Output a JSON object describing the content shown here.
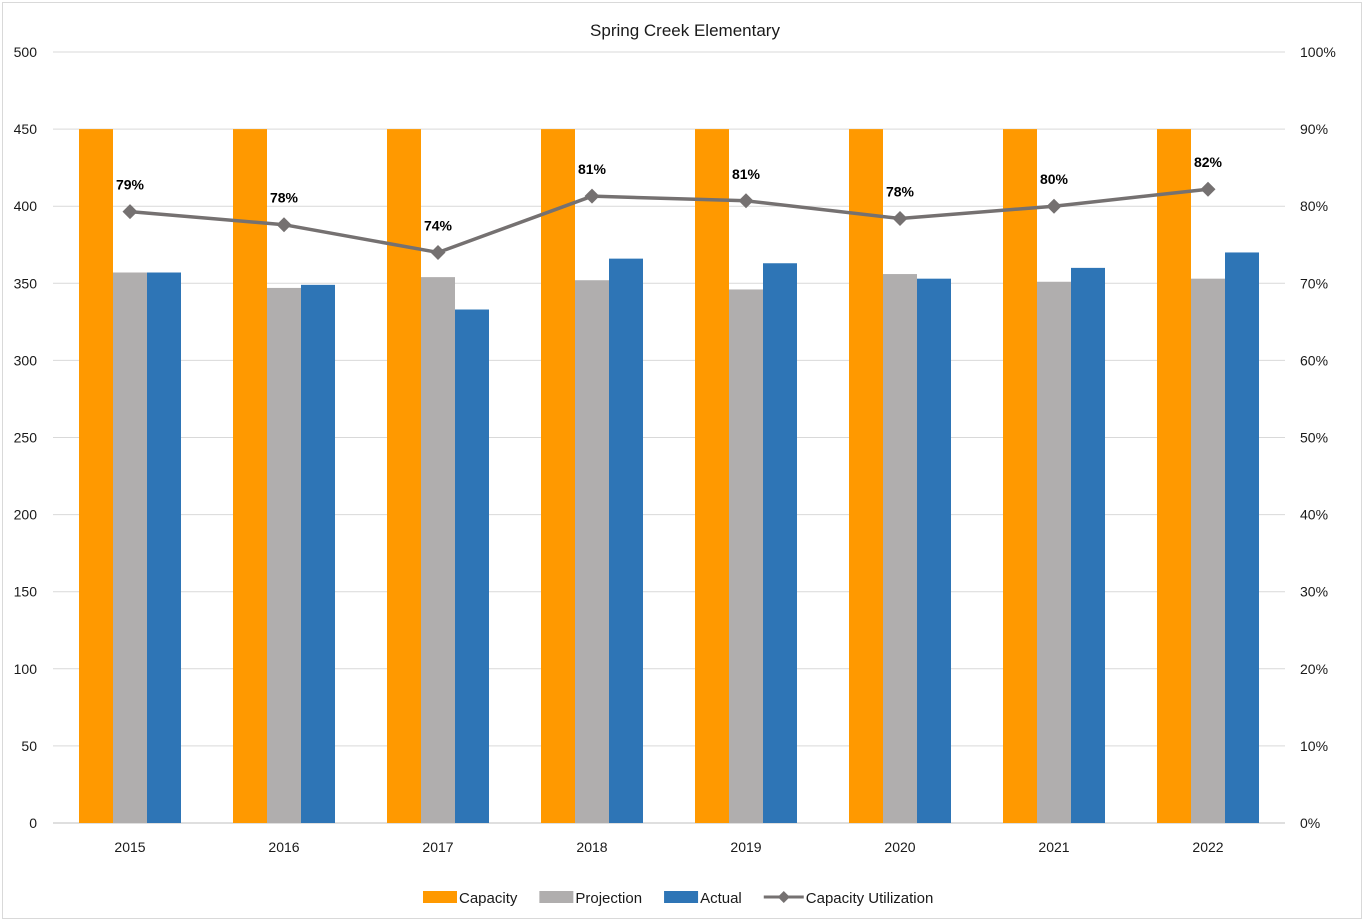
{
  "chart_data": {
    "type": "bar",
    "title": "Spring Creek Elementary",
    "categories": [
      "2015",
      "2016",
      "2017",
      "2018",
      "2019",
      "2020",
      "2021",
      "2022"
    ],
    "series": [
      {
        "name": "Capacity",
        "kind": "bar",
        "color": "#ff9900",
        "values": [
          450,
          450,
          450,
          450,
          450,
          450,
          450,
          450
        ]
      },
      {
        "name": "Projection",
        "kind": "bar",
        "color": "#b0aeae",
        "values": [
          357,
          347,
          354,
          352,
          346,
          356,
          351,
          353
        ]
      },
      {
        "name": "Actual",
        "kind": "bar",
        "color": "#2e75b6",
        "values": [
          357,
          349,
          333,
          366,
          363,
          353,
          360,
          370
        ]
      },
      {
        "name": "Capacity Utilization",
        "kind": "line",
        "axis": "right",
        "color": "#757171",
        "values": [
          79.3,
          77.6,
          74.0,
          81.3,
          80.7,
          78.4,
          80.0,
          82.2
        ],
        "labels": [
          "79%",
          "78%",
          "74%",
          "81%",
          "81%",
          "78%",
          "80%",
          "82%"
        ]
      }
    ],
    "y_left": {
      "min": 0,
      "max": 500,
      "ticks": [
        "0",
        "50",
        "100",
        "150",
        "200",
        "250",
        "300",
        "350",
        "400",
        "450",
        "500"
      ]
    },
    "y_right": {
      "min": 0,
      "max": 100,
      "ticks": [
        "0%",
        "10%",
        "20%",
        "30%",
        "40%",
        "50%",
        "60%",
        "70%",
        "80%",
        "90%",
        "100%"
      ]
    },
    "grid": true,
    "legend_position": "bottom",
    "xlabel": "",
    "ylabel": ""
  }
}
